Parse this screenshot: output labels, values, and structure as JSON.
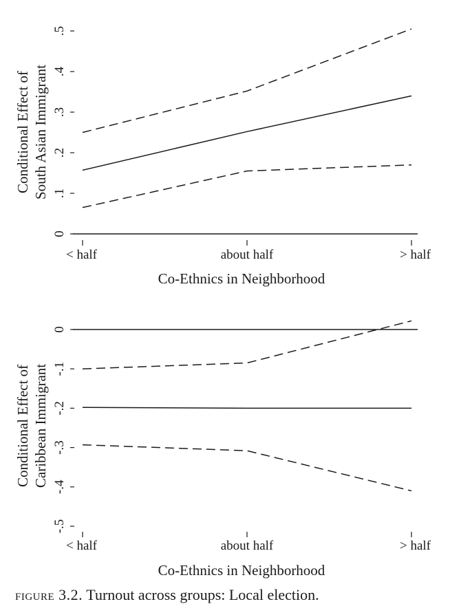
{
  "caption": {
    "label": "FIGURE 3.2.",
    "text": "Turnout across groups: Local election."
  },
  "chart_data": [
    {
      "type": "line",
      "categories": [
        "< half",
        "about half",
        "> half"
      ],
      "x": [
        0,
        1,
        2
      ],
      "xlabel": "Co-Ethnics in Neighborhood",
      "ylabel": [
        "Conditional Effect of",
        "South Asian Immigrant"
      ],
      "ylim": [
        0,
        0.5
      ],
      "yticks": [
        0,
        0.1,
        0.2,
        0.3,
        0.4,
        0.5
      ],
      "ytick_labels": [
        "0",
        ".1",
        ".2",
        ".3",
        ".4",
        ".5"
      ],
      "reference_line": 0,
      "series": [
        {
          "role": "estimate",
          "style": "solid",
          "values": [
            0.157,
            0.252,
            0.34
          ]
        },
        {
          "role": "upper bound",
          "style": "dashed",
          "values": [
            0.25,
            0.352,
            0.505
          ]
        },
        {
          "role": "lower bound",
          "style": "dashed",
          "values": [
            0.065,
            0.155,
            0.17
          ]
        }
      ]
    },
    {
      "type": "line",
      "categories": [
        "< half",
        "about half",
        "> half"
      ],
      "x": [
        0,
        1,
        2
      ],
      "xlabel": "Co-Ethnics in Neighborhood",
      "ylabel": [
        "Conditional Effect of",
        "Caribbean Immigrant"
      ],
      "ylim": [
        -0.5,
        0
      ],
      "yticks": [
        0,
        -0.1,
        -0.2,
        -0.3,
        -0.4,
        -0.5
      ],
      "ytick_labels": [
        "0",
        "-.1",
        "-.2",
        "-.3",
        "-.4",
        "-.5"
      ],
      "reference_line": 0,
      "series": [
        {
          "role": "estimate",
          "style": "solid",
          "values": [
            -0.198,
            -0.2,
            -0.2
          ]
        },
        {
          "role": "upper bound",
          "style": "dashed",
          "values": [
            -0.1,
            -0.085,
            0.022
          ]
        },
        {
          "role": "lower bound",
          "style": "dashed",
          "values": [
            -0.293,
            -0.308,
            -0.41
          ]
        }
      ]
    }
  ]
}
